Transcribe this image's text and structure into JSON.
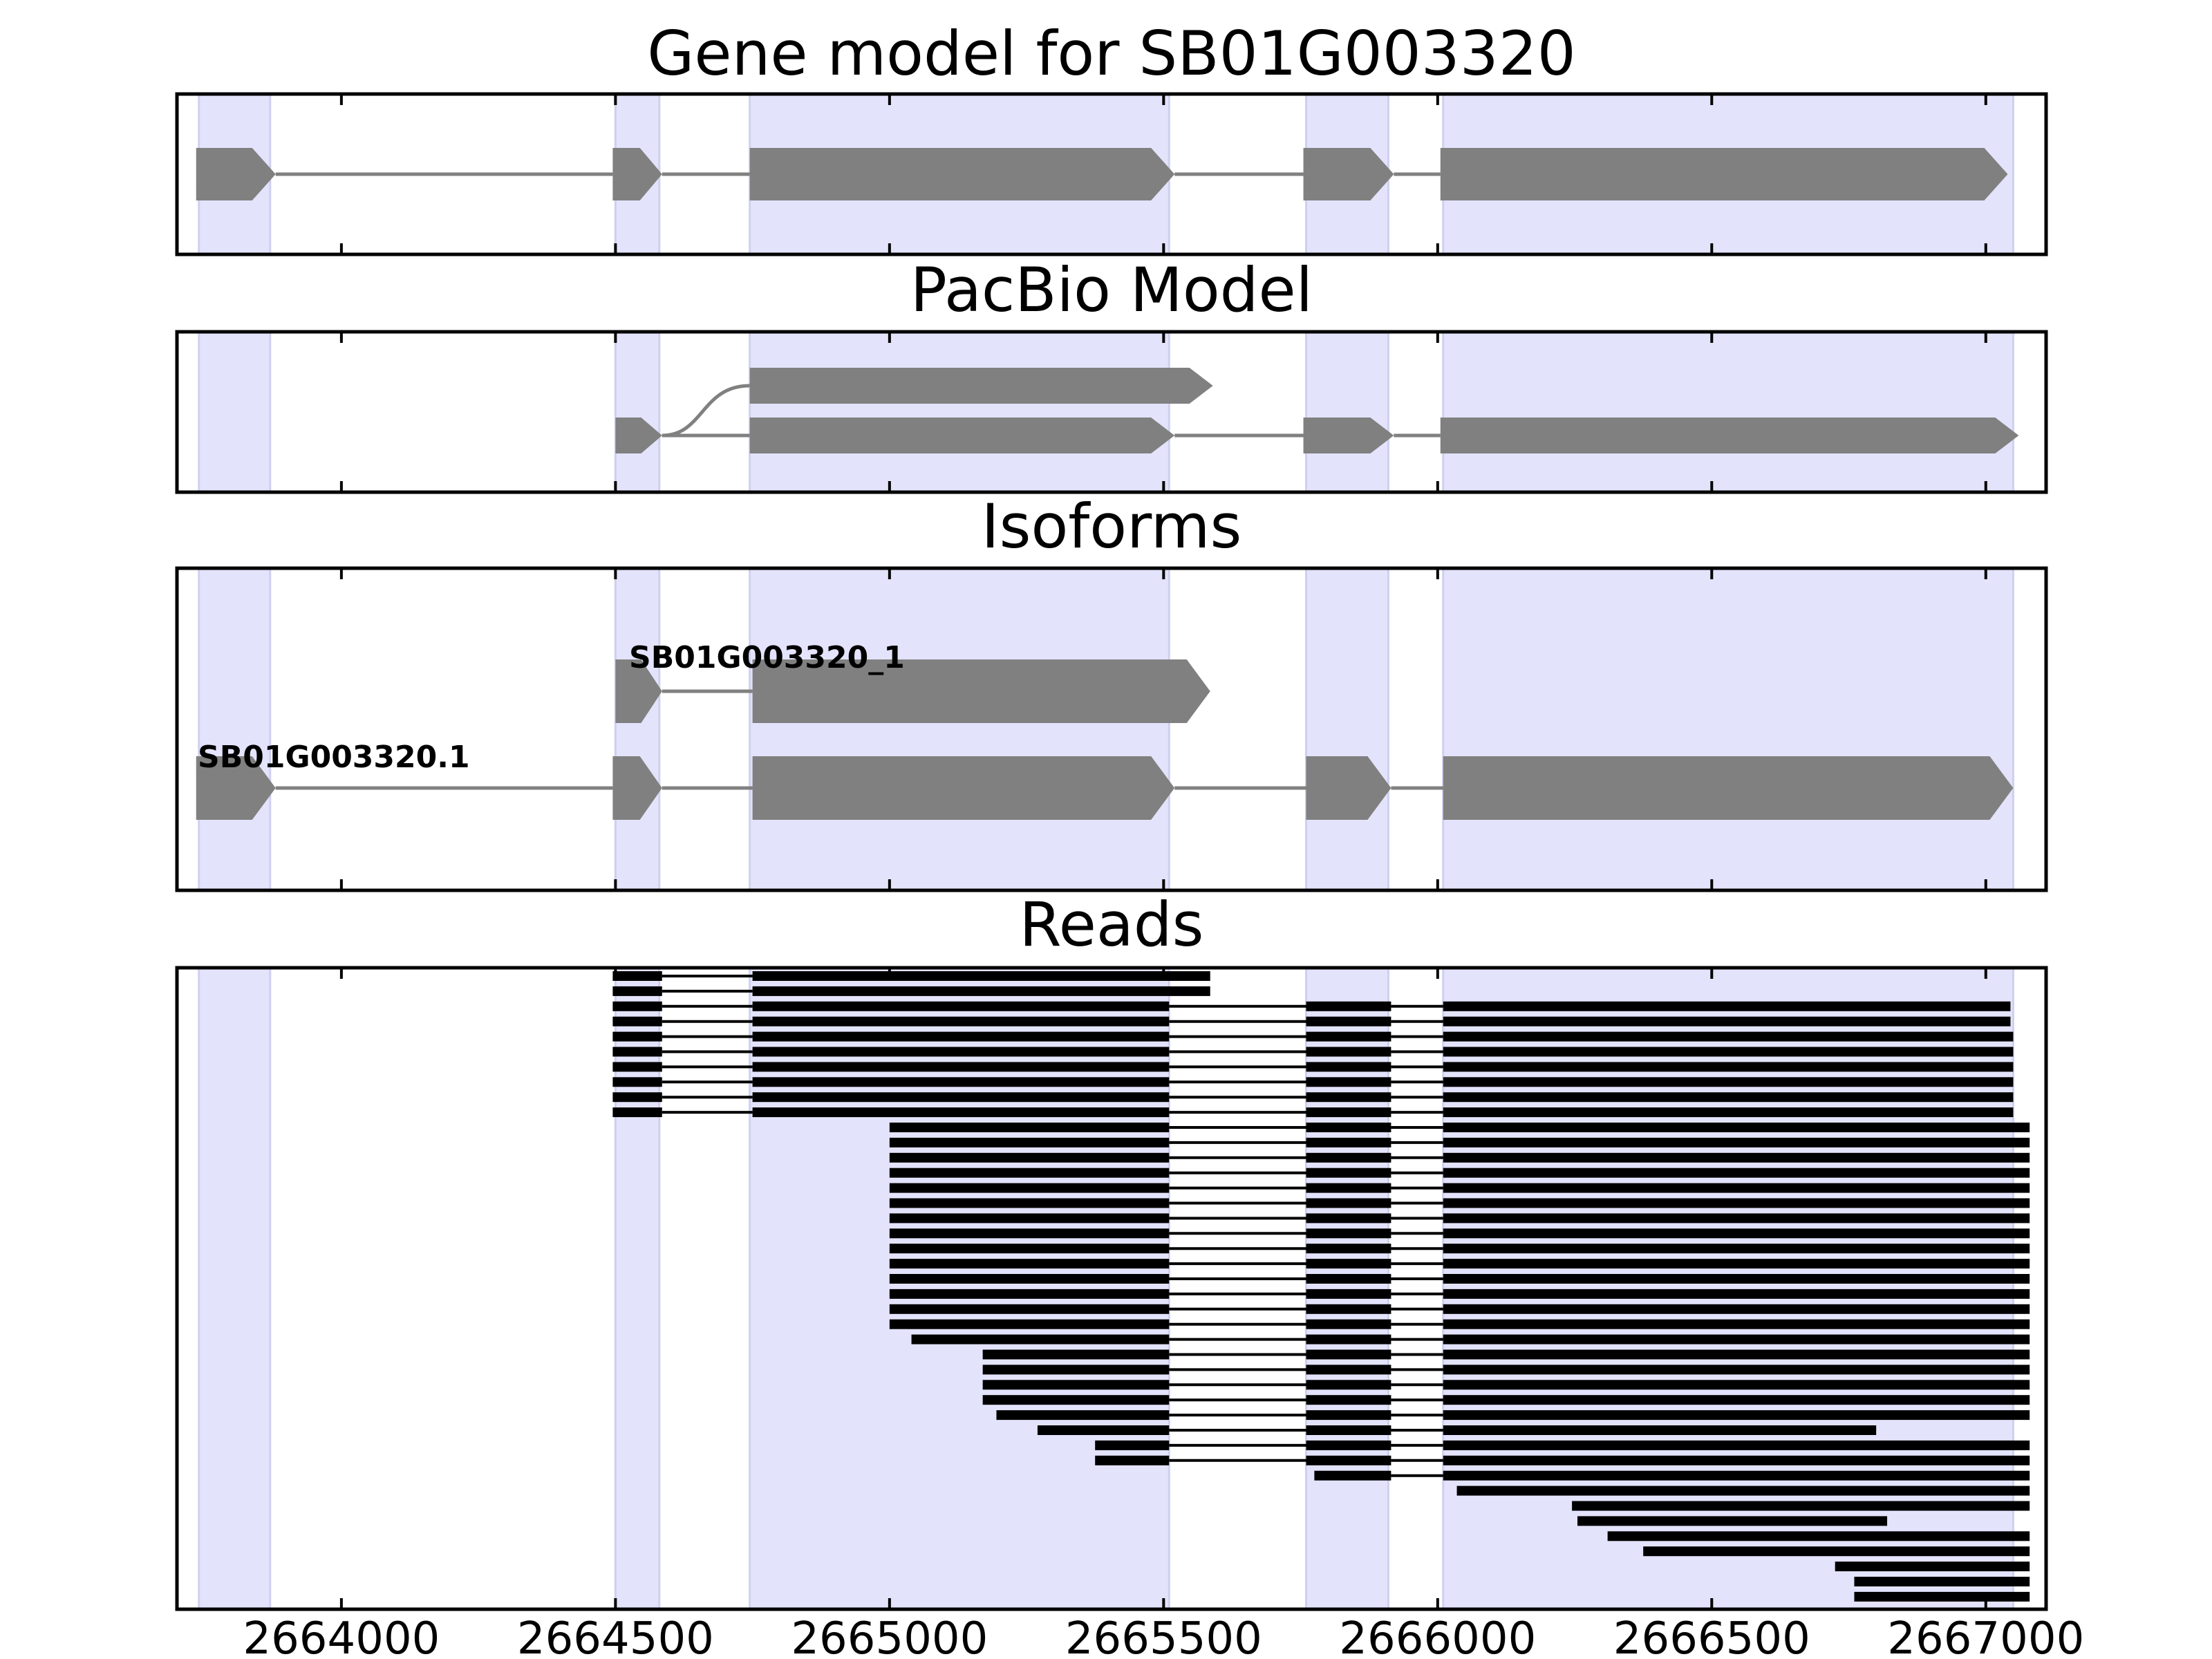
{
  "chart_data": {
    "type": "gene-structure",
    "xlim": [
      2663700,
      2667110
    ],
    "xticks": [
      2664000,
      2664500,
      2665000,
      2665500,
      2666000,
      2666500,
      2667000
    ],
    "highlight_color": "#e3e3fc",
    "feature_color": "#808080",
    "read_color": "#000000",
    "highlight_regions": [
      [
        2663740,
        2663870
      ],
      [
        2664500,
        2664580
      ],
      [
        2664745,
        2665510
      ],
      [
        2665760,
        2665910
      ],
      [
        2666010,
        2667050
      ]
    ],
    "panels": [
      {
        "title": "Gene model for SB01G003320",
        "tracks": [
          {
            "label": "",
            "exons": [
              [
                2663735,
                2663880
              ],
              [
                2664495,
                2664585
              ],
              [
                2664745,
                2665520
              ],
              [
                2665755,
                2665920
              ],
              [
                2666005,
                2667040
              ]
            ]
          }
        ]
      },
      {
        "title": "PacBio Model",
        "tracks": [
          {
            "label": "",
            "exons": [
              [
                2664500,
                2664585
              ],
              [
                2664745,
                2665590
              ]
            ],
            "join": "curve"
          },
          {
            "label": "",
            "exons": [
              [
                2664500,
                2664585
              ],
              [
                2664745,
                2665520
              ],
              [
                2665755,
                2665920
              ],
              [
                2666005,
                2667060
              ]
            ]
          }
        ]
      },
      {
        "title": "Isoforms",
        "tracks": [
          {
            "label": "SB01G003320_1",
            "exons": [
              [
                2664500,
                2664585
              ],
              [
                2664750,
                2665585
              ]
            ]
          },
          {
            "label": "SB01G003320.1",
            "exons": [
              [
                2663735,
                2663880
              ],
              [
                2664495,
                2664585
              ],
              [
                2664750,
                2665520
              ],
              [
                2665760,
                2665915
              ],
              [
                2666010,
                2667050
              ]
            ]
          }
        ]
      },
      {
        "title": "Reads",
        "reads": [
          [
            [
              2664495,
              2664585
            ],
            [
              2664750,
              2665585
            ]
          ],
          [
            [
              2664495,
              2664585
            ],
            [
              2664750,
              2665585
            ]
          ],
          [
            [
              2664495,
              2664585
            ],
            [
              2664750,
              2665510
            ],
            [
              2665760,
              2665915
            ],
            [
              2666010,
              2667045
            ]
          ],
          [
            [
              2664495,
              2664585
            ],
            [
              2664750,
              2665510
            ],
            [
              2665760,
              2665915
            ],
            [
              2666010,
              2667045
            ]
          ],
          [
            [
              2664495,
              2664585
            ],
            [
              2664750,
              2665510
            ],
            [
              2665760,
              2665915
            ],
            [
              2666010,
              2667050
            ]
          ],
          [
            [
              2664495,
              2664585
            ],
            [
              2664750,
              2665510
            ],
            [
              2665760,
              2665915
            ],
            [
              2666010,
              2667050
            ]
          ],
          [
            [
              2664495,
              2664585
            ],
            [
              2664750,
              2665510
            ],
            [
              2665760,
              2665915
            ],
            [
              2666010,
              2667050
            ]
          ],
          [
            [
              2664495,
              2664585
            ],
            [
              2664750,
              2665510
            ],
            [
              2665760,
              2665915
            ],
            [
              2666010,
              2667050
            ]
          ],
          [
            [
              2664495,
              2664585
            ],
            [
              2664750,
              2665510
            ],
            [
              2665760,
              2665915
            ],
            [
              2666010,
              2667050
            ]
          ],
          [
            [
              2664495,
              2664585
            ],
            [
              2664750,
              2665510
            ],
            [
              2665760,
              2665915
            ],
            [
              2666010,
              2667050
            ]
          ],
          [
            [
              2665000,
              2665510
            ],
            [
              2665760,
              2665915
            ],
            [
              2666010,
              2667080
            ]
          ],
          [
            [
              2665000,
              2665510
            ],
            [
              2665760,
              2665915
            ],
            [
              2666010,
              2667080
            ]
          ],
          [
            [
              2665000,
              2665510
            ],
            [
              2665760,
              2665915
            ],
            [
              2666010,
              2667080
            ]
          ],
          [
            [
              2665000,
              2665510
            ],
            [
              2665760,
              2665915
            ],
            [
              2666010,
              2667080
            ]
          ],
          [
            [
              2665000,
              2665510
            ],
            [
              2665760,
              2665915
            ],
            [
              2666010,
              2667080
            ]
          ],
          [
            [
              2665000,
              2665510
            ],
            [
              2665760,
              2665915
            ],
            [
              2666010,
              2667080
            ]
          ],
          [
            [
              2665000,
              2665510
            ],
            [
              2665760,
              2665915
            ],
            [
              2666010,
              2667080
            ]
          ],
          [
            [
              2665000,
              2665510
            ],
            [
              2665760,
              2665915
            ],
            [
              2666010,
              2667080
            ]
          ],
          [
            [
              2665000,
              2665510
            ],
            [
              2665760,
              2665915
            ],
            [
              2666010,
              2667080
            ]
          ],
          [
            [
              2665000,
              2665510
            ],
            [
              2665760,
              2665915
            ],
            [
              2666010,
              2667080
            ]
          ],
          [
            [
              2665000,
              2665510
            ],
            [
              2665760,
              2665915
            ],
            [
              2666010,
              2667080
            ]
          ],
          [
            [
              2665000,
              2665510
            ],
            [
              2665760,
              2665915
            ],
            [
              2666010,
              2667080
            ]
          ],
          [
            [
              2665000,
              2665510
            ],
            [
              2665760,
              2665915
            ],
            [
              2666010,
              2667080
            ]
          ],
          [
            [
              2665000,
              2665510
            ],
            [
              2665760,
              2665915
            ],
            [
              2666010,
              2667080
            ]
          ],
          [
            [
              2665040,
              2665510
            ],
            [
              2665760,
              2665915
            ],
            [
              2666010,
              2667080
            ]
          ],
          [
            [
              2665170,
              2665510
            ],
            [
              2665760,
              2665915
            ],
            [
              2666010,
              2667080
            ]
          ],
          [
            [
              2665170,
              2665510
            ],
            [
              2665760,
              2665915
            ],
            [
              2666010,
              2667080
            ]
          ],
          [
            [
              2665170,
              2665510
            ],
            [
              2665760,
              2665915
            ],
            [
              2666010,
              2667080
            ]
          ],
          [
            [
              2665170,
              2665510
            ],
            [
              2665760,
              2665915
            ],
            [
              2666010,
              2667080
            ]
          ],
          [
            [
              2665195,
              2665510
            ],
            [
              2665760,
              2665915
            ],
            [
              2666010,
              2667080
            ]
          ],
          [
            [
              2665270,
              2665510
            ],
            [
              2665760,
              2665915
            ],
            [
              2666010,
              2666800
            ]
          ],
          [
            [
              2665375,
              2665510
            ],
            [
              2665760,
              2665915
            ],
            [
              2666010,
              2667080
            ]
          ],
          [
            [
              2665375,
              2665510
            ],
            [
              2665760,
              2665915
            ],
            [
              2666010,
              2667080
            ]
          ],
          [
            [
              2665775,
              2665915
            ],
            [
              2666010,
              2667080
            ]
          ],
          [
            [
              2666035,
              2667080
            ]
          ],
          [
            [
              2666245,
              2667080
            ]
          ],
          [
            [
              2666255,
              2666820
            ]
          ],
          [
            [
              2666310,
              2667080
            ]
          ],
          [
            [
              2666375,
              2667080
            ]
          ],
          [
            [
              2666725,
              2667080
            ]
          ],
          [
            [
              2666760,
              2667080
            ]
          ],
          [
            [
              2666760,
              2667080
            ]
          ]
        ]
      }
    ]
  }
}
